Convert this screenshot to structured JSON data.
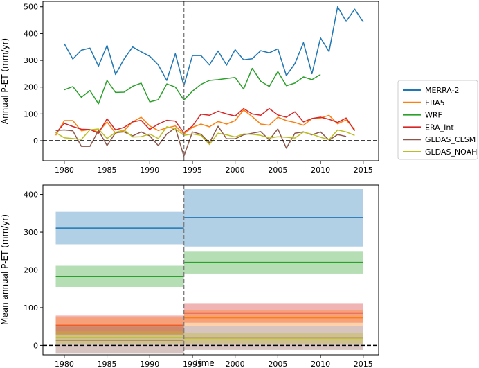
{
  "chart_data": [
    {
      "type": "line",
      "panel": "top",
      "xlabel": "",
      "ylabel": "Annual P-ET (mm/yr)",
      "xlim": [
        1977.5,
        2016.8
      ],
      "ylim": [
        -75,
        520
      ],
      "xticks": [
        1980,
        1985,
        1990,
        1995,
        2000,
        2005,
        2010,
        2015
      ],
      "yticks": [
        0,
        100,
        200,
        300,
        400,
        500
      ],
      "vline_x": 1994,
      "hline_y": 0,
      "series": [
        {
          "name": "MERRA-2",
          "color": "#1f77b4",
          "x_start": 1980,
          "values": [
            362,
            305,
            338,
            346,
            278,
            356,
            247,
            305,
            350,
            332,
            315,
            283,
            225,
            325,
            205,
            318,
            318,
            283,
            335,
            282,
            340,
            302,
            306,
            336,
            328,
            343,
            243,
            288,
            366,
            250,
            384,
            333,
            500,
            445,
            491,
            443
          ]
        },
        {
          "name": "ERA5",
          "color": "#ff7f0e",
          "x_start": 1979,
          "values": [
            20,
            75,
            75,
            37,
            42,
            33,
            70,
            28,
            38,
            70,
            88,
            55,
            38,
            48,
            55,
            25,
            50,
            62,
            52,
            72,
            62,
            75,
            115,
            90,
            62,
            58,
            88,
            75,
            68,
            58,
            82,
            85,
            95,
            63,
            78,
            42
          ]
        },
        {
          "name": "WRF",
          "color": "#2ca02c",
          "x_start": 1980,
          "values": [
            190,
            202,
            162,
            187,
            138,
            225,
            180,
            181,
            203,
            215,
            145,
            153,
            212,
            200,
            152,
            185,
            210,
            225,
            228,
            232,
            236,
            193,
            270,
            222,
            202,
            258,
            205,
            215,
            238,
            228,
            247
          ]
        },
        {
          "name": "ERA_Int",
          "color": "#d62728",
          "x_start": 1979,
          "values": [
            28,
            65,
            53,
            43,
            42,
            28,
            82,
            40,
            50,
            70,
            76,
            42,
            62,
            76,
            73,
            30,
            55,
            99,
            95,
            110,
            100,
            92,
            120,
            100,
            95,
            120,
            96,
            88,
            108,
            70,
            83,
            88,
            80,
            68,
            85,
            37
          ]
        },
        {
          "name": "GLDAS_CLSM",
          "color": "#8c564b",
          "x_start": 1979,
          "values": [
            38,
            40,
            37,
            -21,
            -21,
            38,
            -18,
            30,
            33,
            18,
            33,
            18,
            -18,
            25,
            48,
            -58,
            33,
            24,
            -8,
            54,
            7,
            7,
            22,
            28,
            34,
            3,
            44,
            -28,
            28,
            33,
            22,
            33,
            2,
            23,
            16
          ]
        },
        {
          "name": "GLDAS_NOAH",
          "color": "#bcbd22",
          "x_start": 1979,
          "values": [
            30,
            11,
            8,
            5,
            41,
            44,
            8,
            31,
            40,
            14,
            15,
            25,
            8,
            52,
            44,
            20,
            25,
            20,
            -14,
            28,
            22,
            14,
            25,
            24,
            20,
            10,
            15,
            13,
            10,
            32,
            24,
            13,
            4,
            40,
            33,
            20
          ]
        }
      ],
      "legend": {
        "position": "right, outside plot area",
        "entries": [
          "MERRA-2",
          "ERA5",
          "WRF",
          "ERA_Int",
          "GLDAS_CLSM",
          "GLDAS_NOAH"
        ]
      }
    },
    {
      "type": "line",
      "panel": "bottom",
      "xlabel": "Time",
      "ylabel": "Mean annual P-ET (mm/yr)",
      "xlim": [
        1977.5,
        2016.8
      ],
      "ylim": [
        -25,
        425
      ],
      "xticks": [
        1980,
        1985,
        1990,
        1995,
        2000,
        2005,
        2010,
        2015
      ],
      "yticks": [
        0,
        100,
        200,
        300,
        400
      ],
      "vline_x": 1994,
      "hline_y": 0,
      "series": [
        {
          "name": "MERRA-2",
          "color": "#1f77b4",
          "periods": [
            {
              "start": 1979,
              "end": 1994,
              "mean": 311,
              "low": 268,
              "high": 354
            },
            {
              "start": 1994,
              "end": 2015,
              "mean": 339,
              "low": 262,
              "high": 415
            }
          ]
        },
        {
          "name": "WRF",
          "color": "#2ca02c",
          "periods": [
            {
              "start": 1979,
              "end": 1994,
              "mean": 183,
              "low": 155,
              "high": 211
            },
            {
              "start": 1994,
              "end": 2015,
              "mean": 220,
              "low": 190,
              "high": 250
            }
          ]
        },
        {
          "name": "ERA_Int",
          "color": "#d62728",
          "periods": [
            {
              "start": 1979,
              "end": 1994,
              "mean": 53,
              "low": 27,
              "high": 79
            },
            {
              "start": 1994,
              "end": 2015,
              "mean": 86,
              "low": 60,
              "high": 112
            }
          ]
        },
        {
          "name": "ERA5",
          "color": "#ff7f0e",
          "periods": [
            {
              "start": 1979,
              "end": 1994,
              "mean": 52,
              "low": 30,
              "high": 74
            },
            {
              "start": 1994,
              "end": 2015,
              "mean": 73,
              "low": 52,
              "high": 94
            }
          ]
        },
        {
          "name": "GLDAS_CLSM",
          "color": "#8c564b",
          "periods": [
            {
              "start": 1979,
              "end": 1994,
              "mean": 14,
              "low": -22,
              "high": 50
            },
            {
              "start": 1994,
              "end": 2015,
              "mean": 20,
              "low": -12,
              "high": 52
            }
          ]
        },
        {
          "name": "GLDAS_NOAH",
          "color": "#bcbd22",
          "periods": [
            {
              "start": 1979,
              "end": 1994,
              "mean": 21,
              "low": 5,
              "high": 37
            },
            {
              "start": 1994,
              "end": 2015,
              "mean": 19,
              "low": 5,
              "high": 33
            }
          ]
        }
      ]
    }
  ]
}
